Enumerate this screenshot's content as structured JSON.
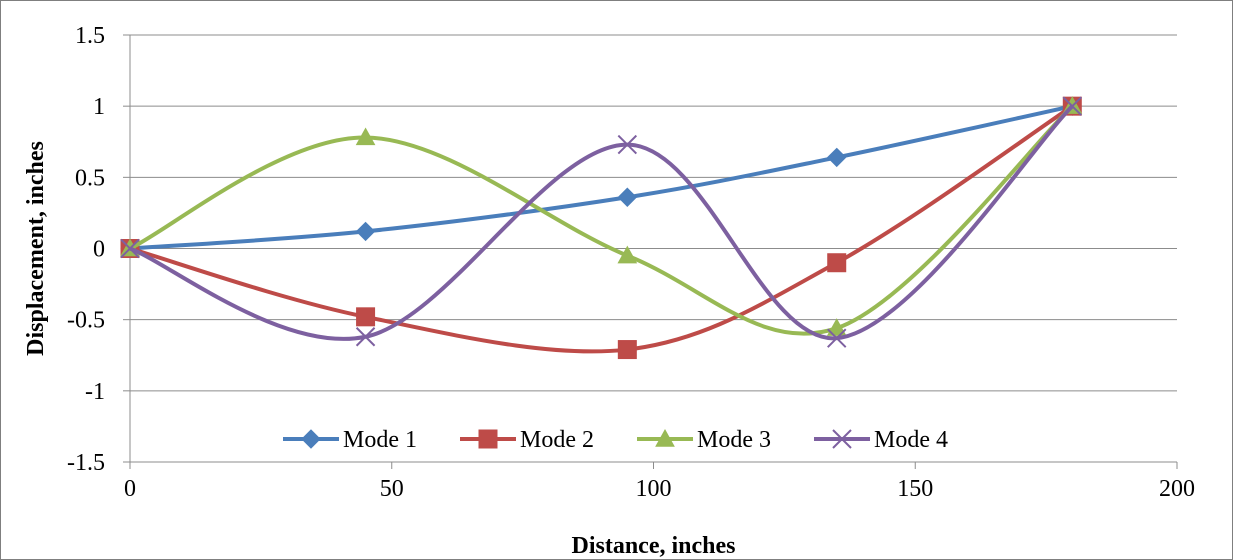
{
  "chart_data": {
    "type": "line",
    "title": "",
    "xlabel": "Distance, inches",
    "ylabel": "Displacement, inches",
    "xlim": [
      0,
      200
    ],
    "ylim": [
      -1.5,
      1.5
    ],
    "x_ticks": [
      0,
      50,
      100,
      150,
      200
    ],
    "y_ticks": [
      1.5,
      1,
      0.5,
      0,
      -0.5,
      -1,
      -1.5
    ],
    "x_tick_labels": [
      "0",
      "50",
      "100",
      "150",
      "200"
    ],
    "y_tick_labels": [
      "1.5",
      "1",
      "0.5",
      "0",
      "-0.5",
      "-1",
      "-1.5"
    ],
    "grid": "horizontal",
    "smooth": true,
    "legend_position": "bottom-inside",
    "x": [
      0,
      45,
      95,
      135,
      180
    ],
    "series": [
      {
        "name": "Mode 1",
        "color": "#4a7ebb",
        "marker": "diamond",
        "values": [
          0,
          0.12,
          0.36,
          0.64,
          1.0
        ]
      },
      {
        "name": "Mode 2",
        "color": "#be4b48",
        "marker": "square",
        "values": [
          0,
          -0.48,
          -0.71,
          -0.1,
          1.0
        ]
      },
      {
        "name": "Mode 3",
        "color": "#98b954",
        "marker": "triangle",
        "values": [
          0,
          0.78,
          -0.05,
          -0.56,
          1.0
        ]
      },
      {
        "name": "Mode 4",
        "color": "#7d60a0",
        "marker": "x",
        "values": [
          0,
          -0.62,
          0.73,
          -0.63,
          1.0
        ]
      }
    ]
  }
}
